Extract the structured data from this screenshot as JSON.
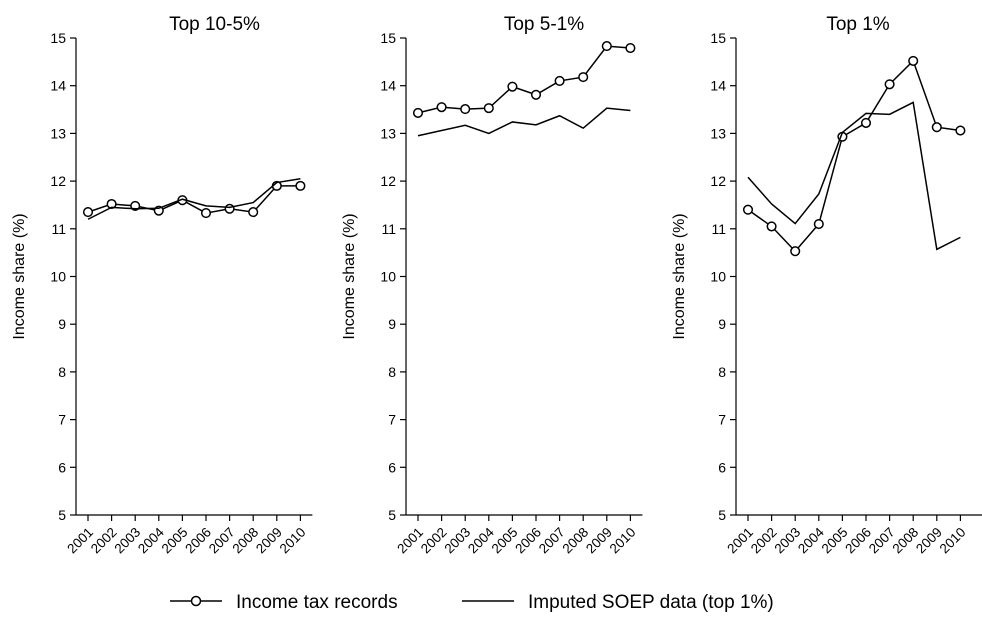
{
  "chart_data": [
    {
      "type": "line",
      "title": "Top 10-5%",
      "ylabel": "Income share (%)",
      "xlabel": "",
      "ylim": [
        5,
        15
      ],
      "yticks": [
        5,
        6,
        7,
        8,
        9,
        10,
        11,
        12,
        13,
        14,
        15
      ],
      "x": [
        "2001",
        "2002",
        "2003",
        "2004",
        "2005",
        "2006",
        "2007",
        "2008",
        "2009",
        "2010"
      ],
      "series": [
        {
          "name": "Income tax records",
          "marker": "circle",
          "values": [
            11.35,
            11.52,
            11.48,
            11.38,
            11.6,
            11.33,
            11.42,
            11.35,
            11.9,
            11.9
          ]
        },
        {
          "name": "Imputed SOEP data (top 1%)",
          "marker": "none",
          "values": [
            11.2,
            11.45,
            11.42,
            11.43,
            11.62,
            11.48,
            11.45,
            11.55,
            11.97,
            12.05
          ]
        }
      ]
    },
    {
      "type": "line",
      "title": "Top 5-1%",
      "ylabel": "Income share (%)",
      "xlabel": "",
      "ylim": [
        5,
        15
      ],
      "yticks": [
        5,
        6,
        7,
        8,
        9,
        10,
        11,
        12,
        13,
        14,
        15
      ],
      "x": [
        "2001",
        "2002",
        "2003",
        "2004",
        "2005",
        "2006",
        "2007",
        "2008",
        "2009",
        "2010"
      ],
      "series": [
        {
          "name": "Income tax records",
          "marker": "circle",
          "values": [
            13.43,
            13.55,
            13.51,
            13.53,
            13.98,
            13.81,
            14.1,
            14.18,
            14.83,
            14.79
          ]
        },
        {
          "name": "Imputed SOEP data (top 1%)",
          "marker": "none",
          "values": [
            12.95,
            13.06,
            13.17,
            13.0,
            13.24,
            13.18,
            13.37,
            13.11,
            13.53,
            13.48
          ]
        }
      ]
    },
    {
      "type": "line",
      "title": "Top 1%",
      "ylabel": "Income share (%)",
      "xlabel": "",
      "ylim": [
        5,
        15
      ],
      "yticks": [
        5,
        6,
        7,
        8,
        9,
        10,
        11,
        12,
        13,
        14,
        15
      ],
      "x": [
        "2001",
        "2002",
        "2003",
        "2004",
        "2005",
        "2006",
        "2007",
        "2008",
        "2009",
        "2010"
      ],
      "series": [
        {
          "name": "Income tax records",
          "marker": "circle",
          "values": [
            11.4,
            11.05,
            10.53,
            11.1,
            12.93,
            13.22,
            14.03,
            14.52,
            13.13,
            13.06
          ]
        },
        {
          "name": "Imputed SOEP data (top 1%)",
          "marker": "none",
          "values": [
            12.08,
            11.52,
            11.11,
            11.73,
            13.02,
            13.42,
            13.4,
            13.65,
            10.57,
            10.82
          ]
        }
      ]
    }
  ],
  "legend": {
    "items": [
      {
        "label": "Income tax records",
        "marker": "circle"
      },
      {
        "label": "Imputed SOEP data (top 1%)",
        "marker": "none"
      }
    ],
    "placement": "bottom"
  }
}
